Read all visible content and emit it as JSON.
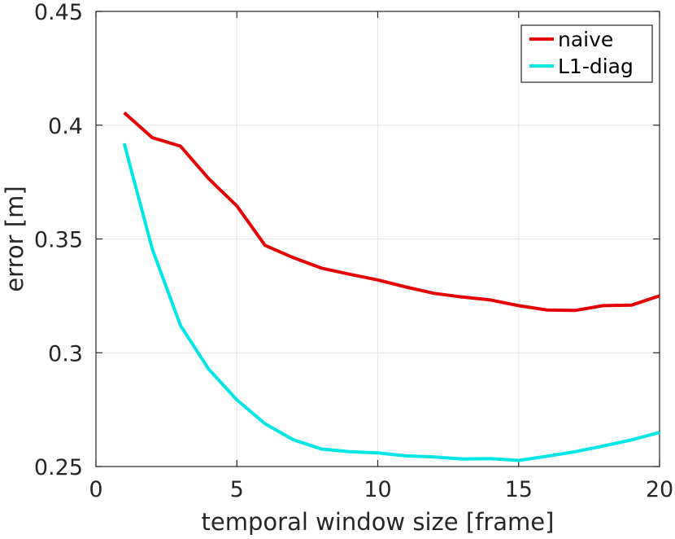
{
  "chart_data": {
    "type": "line",
    "xlabel": "temporal window size [frame]",
    "ylabel": "error [m]",
    "xlim": [
      0,
      20
    ],
    "ylim": [
      0.25,
      0.45
    ],
    "xticks": [
      0,
      5,
      10,
      15,
      20
    ],
    "yticks": [
      0.25,
      0.3,
      0.35,
      0.4,
      0.45
    ],
    "xtick_labels": [
      "0",
      "5",
      "10",
      "15",
      "20"
    ],
    "ytick_labels": [
      "0.25",
      "0.3",
      "0.35",
      "0.4",
      "0.45"
    ],
    "grid": true,
    "legend_position": "top-right",
    "x": [
      1,
      2,
      3,
      4,
      5,
      6,
      7,
      8,
      9,
      10,
      11,
      12,
      13,
      14,
      15,
      16,
      17,
      18,
      19,
      20
    ],
    "series": [
      {
        "name": "naive",
        "color": "#e60000",
        "values": [
          0.4055,
          0.3945,
          0.3908,
          0.3765,
          0.3645,
          0.3472,
          0.3418,
          0.3372,
          0.3345,
          0.332,
          0.3289,
          0.3261,
          0.3245,
          0.3232,
          0.3207,
          0.3188,
          0.3186,
          0.3207,
          0.3209,
          0.325
        ]
      },
      {
        "name": "L1-diag",
        "color": "#00e6e6",
        "values": [
          0.392,
          0.3455,
          0.312,
          0.2928,
          0.2793,
          0.2688,
          0.2618,
          0.2577,
          0.2565,
          0.256,
          0.2547,
          0.2542,
          0.2533,
          0.2535,
          0.2527,
          0.2545,
          0.2565,
          0.259,
          0.2617,
          0.265
        ]
      }
    ]
  }
}
